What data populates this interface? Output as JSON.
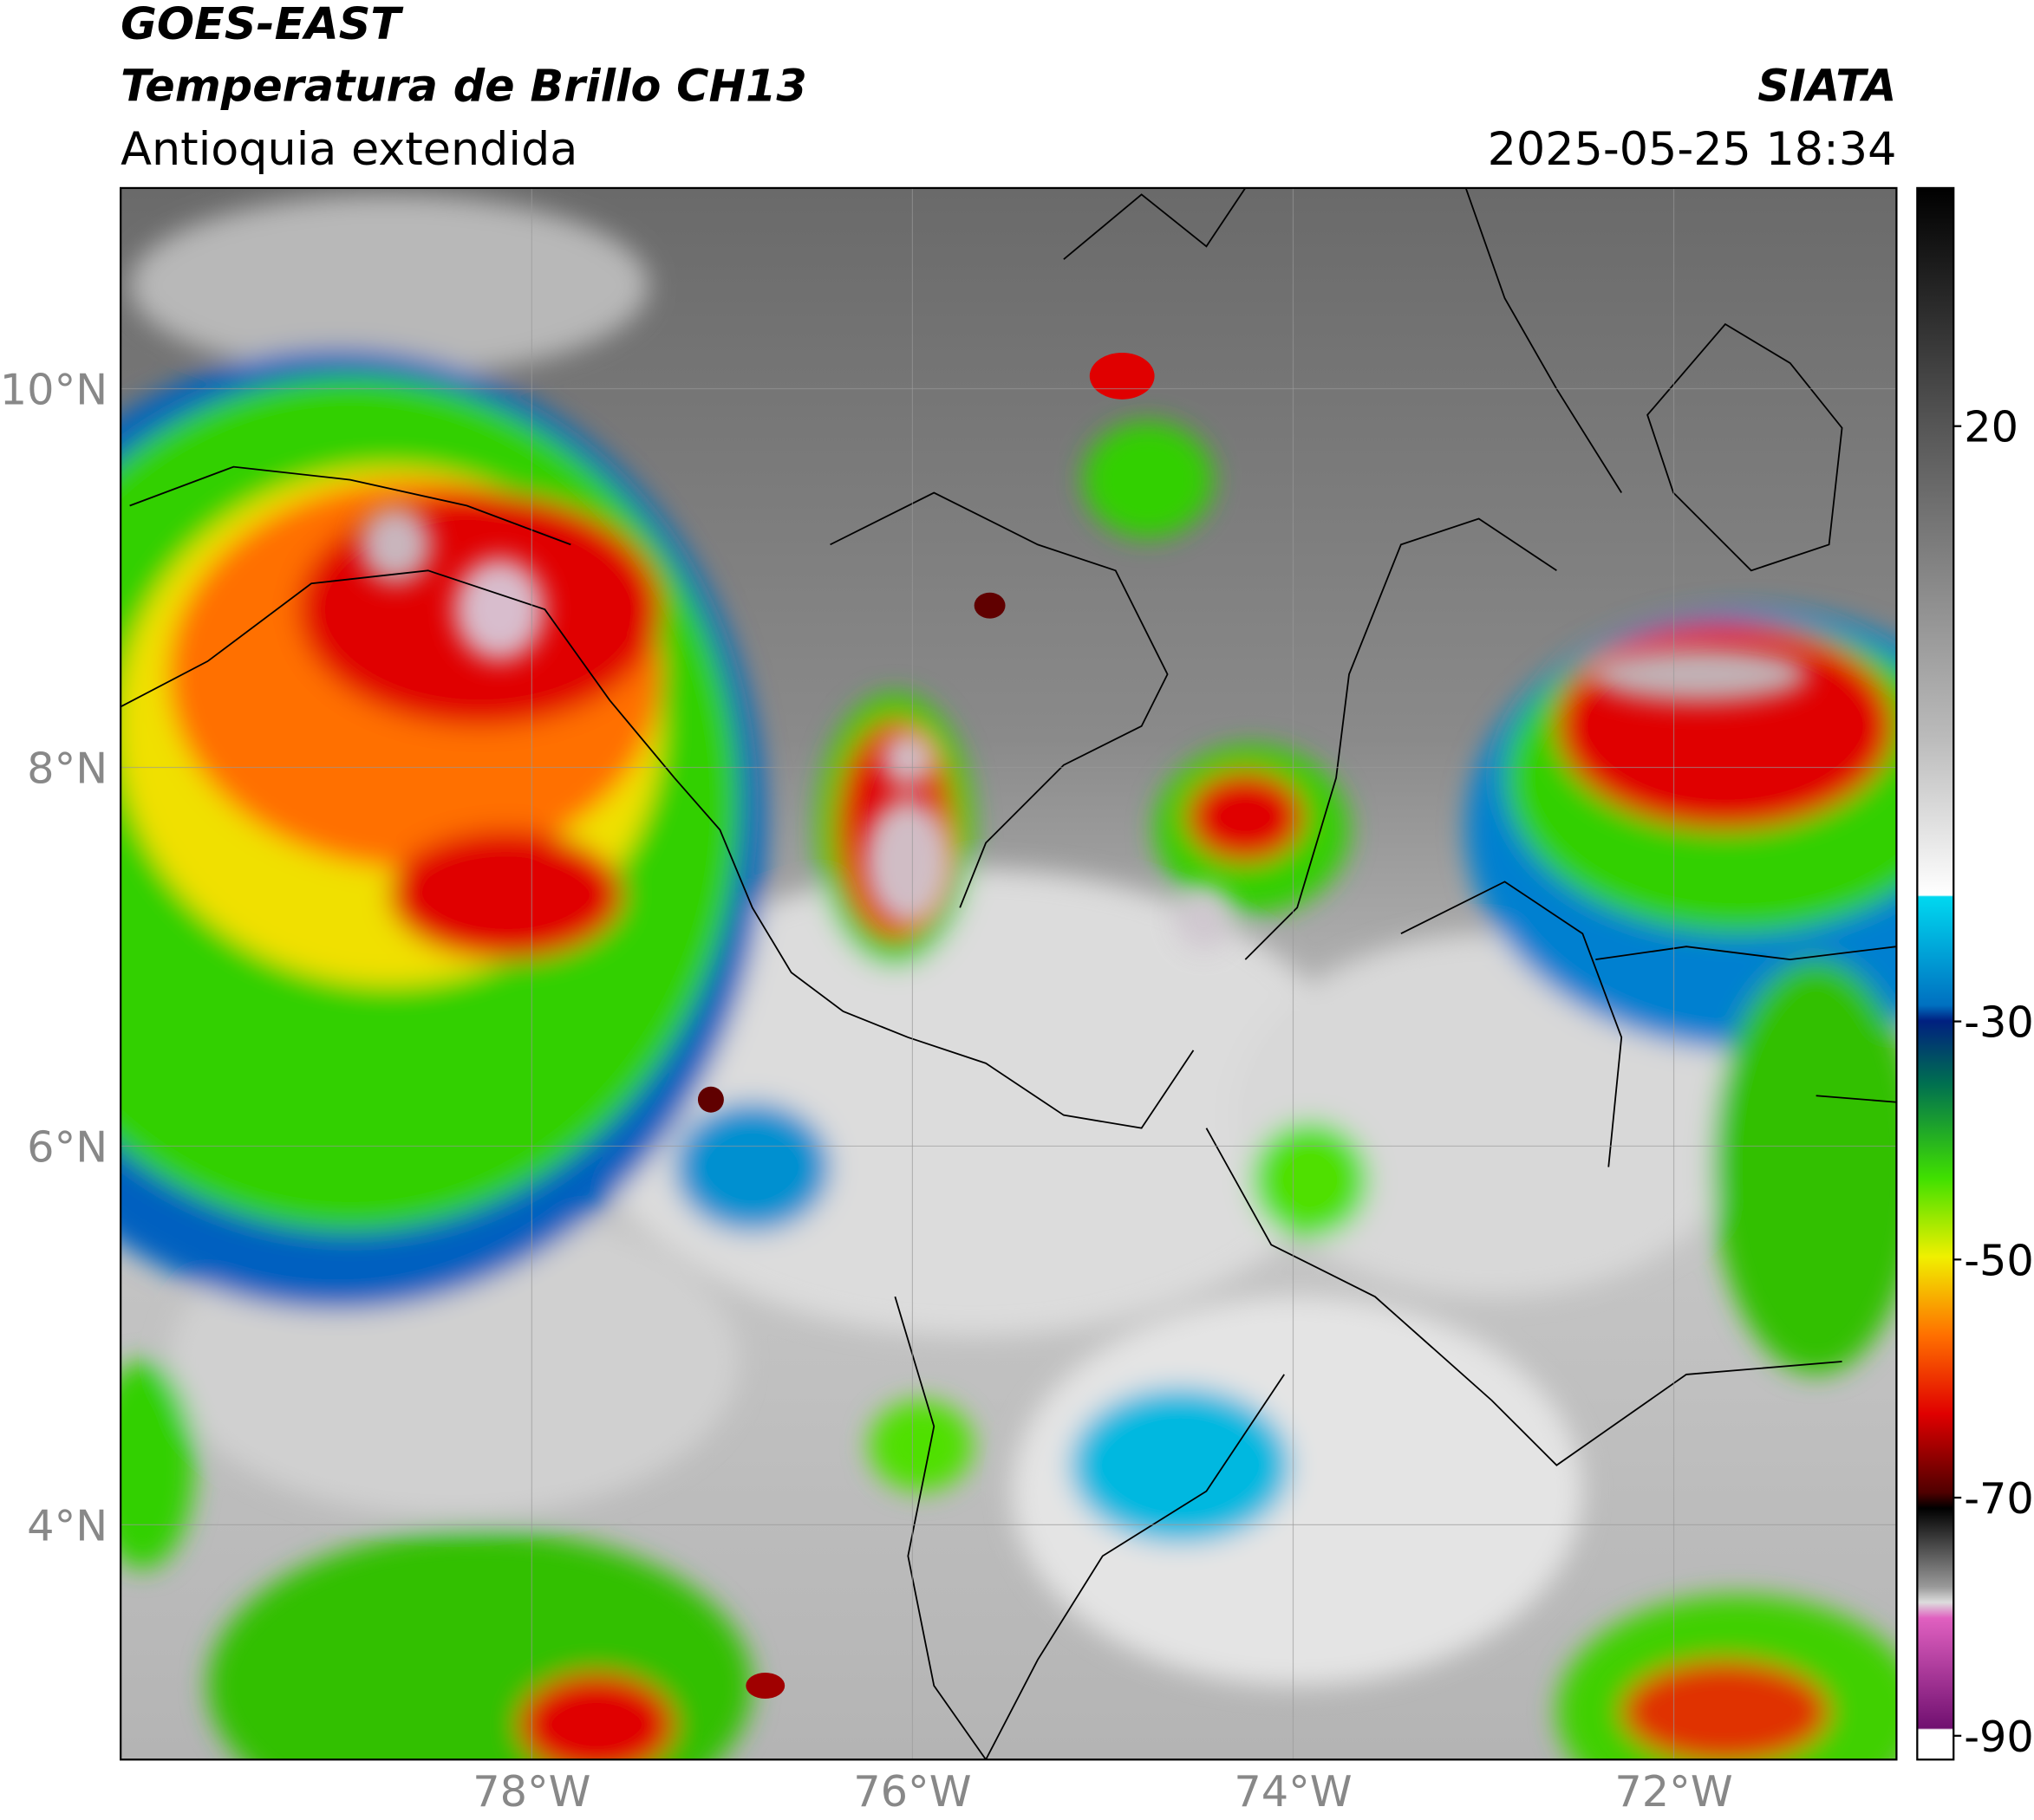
{
  "header": {
    "title": "GOES-EAST",
    "subtitle": "Temperatura de Brillo CH13",
    "region": "Antioquia extendida",
    "source": "SIATA",
    "datetime": "2025-05-25 18:34"
  },
  "map": {
    "xlim": [
      -80.16,
      -70.83
    ],
    "ylim": [
      2.76,
      11.06
    ],
    "xticks": [
      {
        "value": -78,
        "label": "78°W"
      },
      {
        "value": -76,
        "label": "76°W"
      },
      {
        "value": -74,
        "label": "74°W"
      },
      {
        "value": -72,
        "label": "72°W"
      }
    ],
    "yticks": [
      {
        "value": 10,
        "label": "10°N"
      },
      {
        "value": 8,
        "label": "8°N"
      },
      {
        "value": 6,
        "label": "6°N"
      },
      {
        "value": 4,
        "label": "4°N"
      }
    ]
  },
  "colorbar": {
    "ylim": [
      -92,
      40
    ],
    "ticks": [
      20,
      -30,
      -50,
      -70,
      -90
    ]
  }
}
